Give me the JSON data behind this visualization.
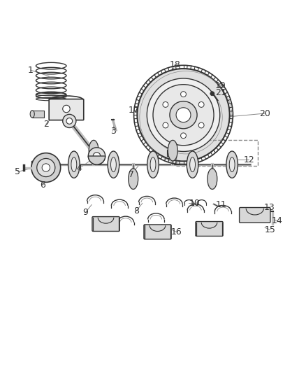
{
  "title": "",
  "background_color": "#ffffff",
  "line_color": "#333333",
  "label_color": "#333333",
  "leader_line_color": "#888888",
  "font_size": 9,
  "fig_width": 4.38,
  "fig_height": 5.33,
  "dpi": 100
}
